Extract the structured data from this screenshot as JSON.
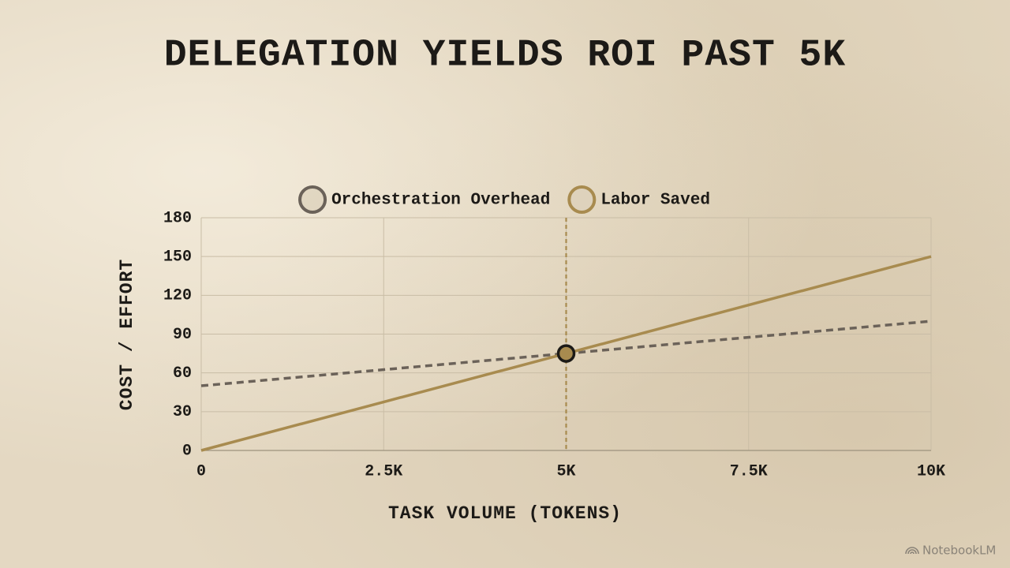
{
  "chart_data": {
    "type": "line",
    "title": "DELEGATION YIELDS ROI PAST 5K",
    "x_label": "TASK VOLUME (TOKENS)",
    "y_label": "COST / EFFORT",
    "x": [
      0,
      10000
    ],
    "series": [
      {
        "name": "Orchestration Overhead",
        "color": "#6b6259",
        "line_style": "dashed",
        "values": [
          50,
          100
        ]
      },
      {
        "name": "Labor Saved",
        "color": "#a88b4f",
        "line_style": "solid",
        "values": [
          0,
          150
        ]
      }
    ],
    "crossover": {
      "x": 5000,
      "y": 75
    },
    "xlim": [
      0,
      10000
    ],
    "xticks": [
      0,
      {
        "value": 2500,
        "label": "2.5K"
      },
      {
        "value": 5000,
        "label": "5K"
      },
      {
        "value": 7500,
        "label": "7.5K"
      },
      {
        "value": 10000,
        "label": "10K"
      }
    ],
    "ylim": [
      0,
      180
    ],
    "yticks": [
      0,
      30,
      60,
      90,
      120,
      150,
      180
    ],
    "grid": true,
    "legend": "top",
    "watermark": "NotebookLM"
  }
}
